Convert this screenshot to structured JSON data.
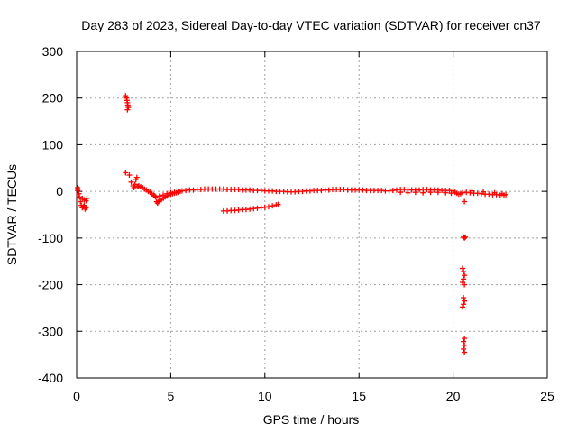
{
  "chart_data": {
    "type": "scatter",
    "title": "Day 283 of 2023, Sidereal Day-to-day VTEC variation (SDTVAR) for receiver cn37",
    "xlabel": "GPS time / hours",
    "ylabel": "SDTVAR / TECUs",
    "xlim": [
      0,
      25
    ],
    "ylim": [
      -400,
      300
    ],
    "xticks": [
      0,
      5,
      10,
      15,
      20,
      25
    ],
    "yticks": [
      -400,
      -300,
      -200,
      -100,
      0,
      100,
      200,
      300
    ],
    "grid": true,
    "marker": "plus",
    "series_color": "#ff0000",
    "series": [
      {
        "name": "SDTVAR",
        "points": [
          [
            0.05,
            8
          ],
          [
            0.05,
            2
          ],
          [
            0.1,
            5
          ],
          [
            0.12,
            -5
          ],
          [
            0.15,
            -12
          ],
          [
            0.2,
            -22
          ],
          [
            0.25,
            -30
          ],
          [
            0.3,
            -35
          ],
          [
            0.35,
            -33
          ],
          [
            0.4,
            -30
          ],
          [
            0.45,
            -38
          ],
          [
            0.5,
            -35
          ],
          [
            0.3,
            -15
          ],
          [
            0.4,
            -18
          ],
          [
            0.5,
            -20
          ],
          [
            0.55,
            -15
          ],
          [
            2.6,
            205
          ],
          [
            2.65,
            200
          ],
          [
            2.68,
            195
          ],
          [
            2.7,
            190
          ],
          [
            2.72,
            185
          ],
          [
            2.75,
            180
          ],
          [
            2.7,
            175
          ],
          [
            2.6,
            40
          ],
          [
            2.8,
            35
          ],
          [
            2.9,
            20
          ],
          [
            3.0,
            12
          ],
          [
            3.05,
            8
          ],
          [
            3.1,
            15
          ],
          [
            3.15,
            25
          ],
          [
            3.2,
            30
          ],
          [
            3.25,
            10
          ],
          [
            3.3,
            12
          ],
          [
            3.4,
            10
          ],
          [
            3.5,
            8
          ],
          [
            3.6,
            5
          ],
          [
            3.7,
            3
          ],
          [
            3.8,
            0
          ],
          [
            3.9,
            -2
          ],
          [
            4.0,
            -5
          ],
          [
            4.1,
            -8
          ],
          [
            4.15,
            -10
          ],
          [
            4.2,
            -12
          ],
          [
            4.25,
            -22
          ],
          [
            4.3,
            -25
          ],
          [
            4.35,
            -22
          ],
          [
            4.4,
            -20
          ],
          [
            4.5,
            -18
          ],
          [
            4.6,
            -15
          ],
          [
            4.7,
            -12
          ],
          [
            4.8,
            -10
          ],
          [
            4.9,
            -8
          ],
          [
            5.0,
            -6
          ],
          [
            5.1,
            -5
          ],
          [
            5.2,
            -4
          ],
          [
            5.3,
            -3
          ],
          [
            5.4,
            -2
          ],
          [
            5.5,
            0
          ],
          [
            5.6,
            1
          ],
          [
            5.8,
            2
          ],
          [
            6.0,
            3
          ],
          [
            6.2,
            3
          ],
          [
            6.4,
            4
          ],
          [
            6.6,
            4
          ],
          [
            6.8,
            5
          ],
          [
            7.0,
            5
          ],
          [
            7.2,
            5
          ],
          [
            7.4,
            5
          ],
          [
            7.6,
            5
          ],
          [
            7.8,
            5
          ],
          [
            8.0,
            4
          ],
          [
            8.2,
            4
          ],
          [
            8.4,
            4
          ],
          [
            8.6,
            4
          ],
          [
            8.8,
            3
          ],
          [
            9.0,
            3
          ],
          [
            9.2,
            3
          ],
          [
            9.4,
            2
          ],
          [
            9.6,
            2
          ],
          [
            9.8,
            2
          ],
          [
            10.0,
            1
          ],
          [
            10.2,
            1
          ],
          [
            10.4,
            1
          ],
          [
            10.6,
            0
          ],
          [
            10.8,
            0
          ],
          [
            11.0,
            0
          ],
          [
            11.2,
            -1
          ],
          [
            11.4,
            -1
          ],
          [
            11.6,
            -1
          ],
          [
            11.8,
            0
          ],
          [
            12.0,
            0
          ],
          [
            4.4,
            -10
          ],
          [
            4.6,
            -8
          ],
          [
            4.8,
            -5
          ],
          [
            5.0,
            -3
          ],
          [
            5.2,
            -2
          ],
          [
            5.4,
            0
          ],
          [
            12.2,
            1
          ],
          [
            12.4,
            1
          ],
          [
            12.6,
            2
          ],
          [
            12.8,
            2
          ],
          [
            13.0,
            2
          ],
          [
            13.2,
            3
          ],
          [
            13.4,
            3
          ],
          [
            13.6,
            4
          ],
          [
            13.8,
            4
          ],
          [
            14.0,
            4
          ],
          [
            14.2,
            4
          ],
          [
            14.4,
            3
          ],
          [
            14.6,
            3
          ],
          [
            14.8,
            3
          ],
          [
            15.0,
            3
          ],
          [
            15.2,
            3
          ],
          [
            15.4,
            2
          ],
          [
            15.6,
            2
          ],
          [
            15.8,
            2
          ],
          [
            16.0,
            2
          ],
          [
            16.2,
            2
          ],
          [
            16.4,
            1
          ],
          [
            16.6,
            1
          ],
          [
            16.8,
            2
          ],
          [
            17.0,
            3
          ],
          [
            17.2,
            4
          ],
          [
            17.4,
            4
          ],
          [
            17.6,
            4
          ],
          [
            17.8,
            3
          ],
          [
            18.0,
            3
          ],
          [
            18.2,
            3
          ],
          [
            18.4,
            4
          ],
          [
            18.6,
            4
          ],
          [
            18.8,
            3
          ],
          [
            19.0,
            3
          ],
          [
            19.2,
            3
          ],
          [
            19.4,
            2
          ],
          [
            19.6,
            2
          ],
          [
            19.8,
            2
          ],
          [
            20.0,
            1
          ],
          [
            17.2,
            -2
          ],
          [
            17.6,
            -3
          ],
          [
            18.0,
            -2
          ],
          [
            18.4,
            -3
          ],
          [
            18.8,
            -2
          ],
          [
            19.2,
            -2
          ],
          [
            19.6,
            -3
          ],
          [
            19.9,
            -4
          ],
          [
            7.8,
            -42
          ],
          [
            8.0,
            -42
          ],
          [
            8.2,
            -41
          ],
          [
            8.4,
            -41
          ],
          [
            8.6,
            -40
          ],
          [
            8.8,
            -39
          ],
          [
            9.0,
            -39
          ],
          [
            9.2,
            -38
          ],
          [
            9.4,
            -37
          ],
          [
            9.6,
            -36
          ],
          [
            9.8,
            -35
          ],
          [
            10.0,
            -34
          ],
          [
            10.2,
            -33
          ],
          [
            10.4,
            -31
          ],
          [
            10.6,
            -29
          ],
          [
            10.7,
            -28
          ],
          [
            20.1,
            -2
          ],
          [
            20.2,
            -4
          ],
          [
            20.3,
            -6
          ],
          [
            20.4,
            -5
          ],
          [
            20.5,
            -3
          ],
          [
            20.6,
            -22
          ],
          [
            20.55,
            -98
          ],
          [
            20.6,
            -100
          ],
          [
            20.65,
            -98
          ],
          [
            20.5,
            -165
          ],
          [
            20.55,
            -172
          ],
          [
            20.6,
            -180
          ],
          [
            20.55,
            -188
          ],
          [
            20.5,
            -195
          ],
          [
            20.6,
            -200
          ],
          [
            20.55,
            -228
          ],
          [
            20.6,
            -235
          ],
          [
            20.55,
            -242
          ],
          [
            20.5,
            -248
          ],
          [
            20.6,
            -315
          ],
          [
            20.55,
            -322
          ],
          [
            20.6,
            -330
          ],
          [
            20.55,
            -338
          ],
          [
            20.6,
            -345
          ],
          [
            20.7,
            -2
          ],
          [
            20.9,
            -3
          ],
          [
            21.1,
            -4
          ],
          [
            21.3,
            -4
          ],
          [
            21.5,
            -5
          ],
          [
            21.7,
            -6
          ],
          [
            21.9,
            -6
          ],
          [
            22.1,
            -7
          ],
          [
            22.3,
            -7
          ],
          [
            22.5,
            -8
          ],
          [
            22.7,
            -8
          ],
          [
            22.8,
            -7
          ],
          [
            21.0,
            1
          ],
          [
            21.6,
            -1
          ],
          [
            22.2,
            -3
          ],
          [
            22.6,
            -5
          ]
        ]
      }
    ]
  }
}
